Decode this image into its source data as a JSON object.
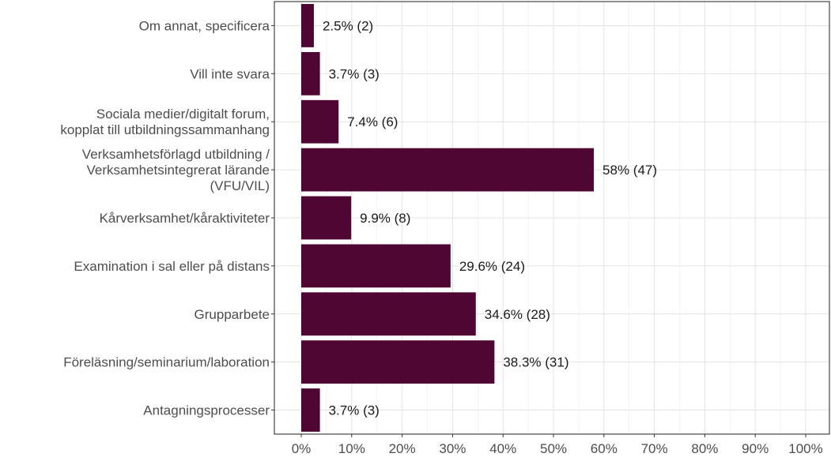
{
  "chart_data": {
    "type": "bar",
    "orientation": "horizontal",
    "title": "",
    "xlabel": "",
    "ylabel": "",
    "xlim": [
      0,
      100
    ],
    "x_ticks": [
      "0%",
      "10%",
      "20%",
      "30%",
      "40%",
      "50%",
      "60%",
      "70%",
      "80%",
      "90%",
      "100%"
    ],
    "grid": true,
    "bar_color": "#4f0633",
    "categories": [
      [
        "Om annat, specificera"
      ],
      [
        "Vill inte svara"
      ],
      [
        "Sociala medier/digitalt forum,",
        "kopplat till utbildningssammanhang"
      ],
      [
        "Verksamhetsförlagd utbildning /",
        "Verksamhetsintegrerat lärande",
        "(VFU/VIL)"
      ],
      [
        "Kårverksamhet/kåraktiviteter"
      ],
      [
        "Examination i sal eller på distans"
      ],
      [
        "Grupparbete"
      ],
      [
        "Föreläsning/seminarium/laboration"
      ],
      [
        "Antagningsprocesser"
      ]
    ],
    "values": [
      2.5,
      3.7,
      7.4,
      58,
      9.9,
      29.6,
      34.6,
      38.3,
      3.7
    ],
    "data_labels": [
      "2.5% (2)",
      "3.7% (3)",
      "7.4% (6)",
      "58% (47)",
      "9.9% (8)",
      "29.6% (24)",
      "34.6% (28)",
      "38.3% (31)",
      "3.7% (3)"
    ]
  }
}
